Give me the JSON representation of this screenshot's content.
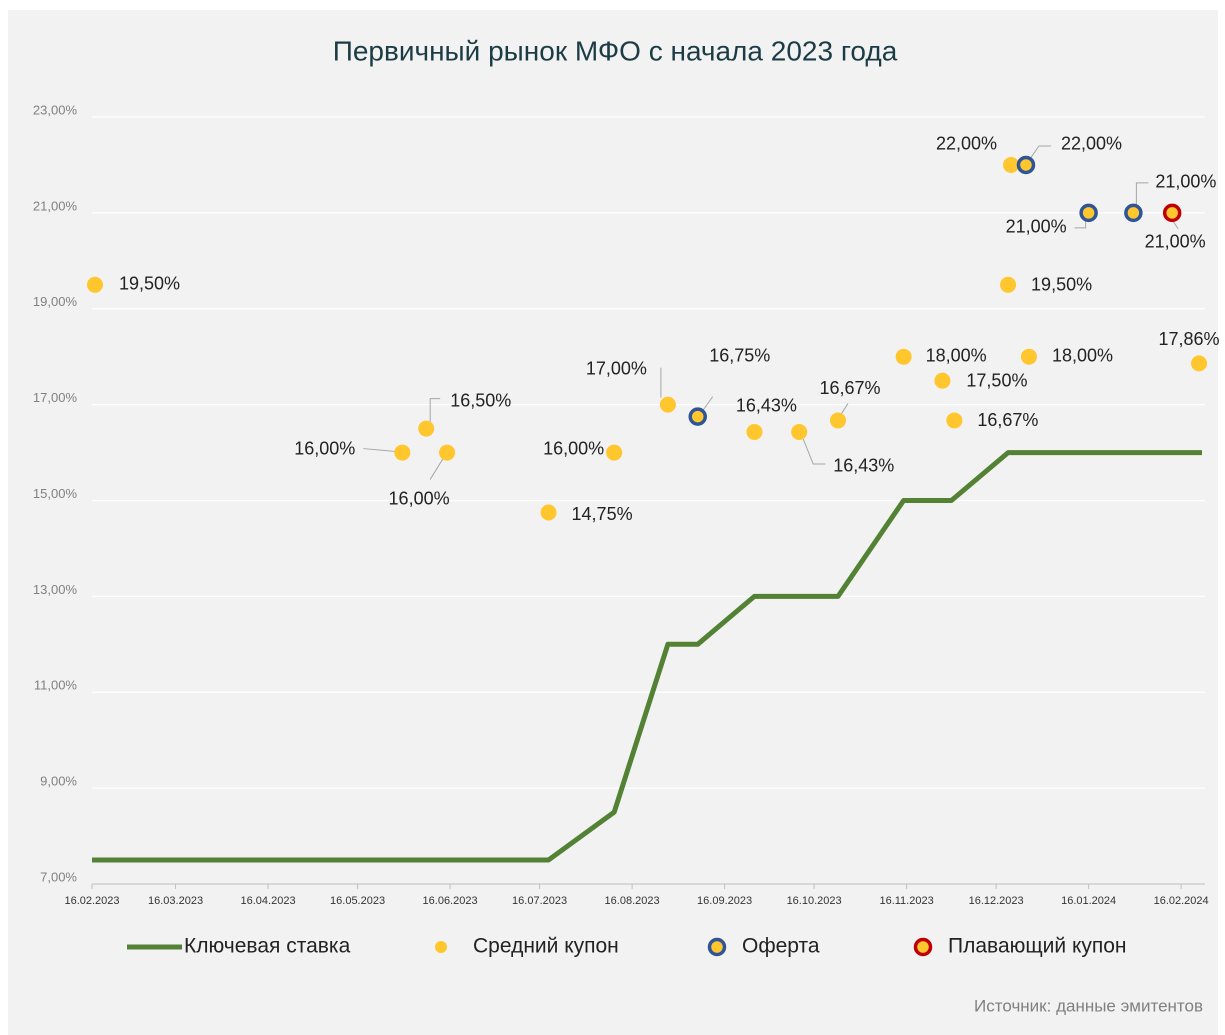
{
  "chart_data": {
    "type": "line",
    "title": "Первичный рынок МФО с начала 2023 года",
    "source": "Источник: данные эмитентов",
    "xlim": [
      "16.02.2023",
      "24.02.2024"
    ],
    "xticks": [
      "16.02.2023",
      "16.03.2023",
      "16.04.2023",
      "16.05.2023",
      "16.06.2023",
      "16.07.2023",
      "16.08.2023",
      "16.09.2023",
      "16.10.2023",
      "16.11.2023",
      "16.12.2023",
      "16.01.2024",
      "16.02.2024"
    ],
    "ylim": [
      7,
      23
    ],
    "yticks": [
      {
        "value": 7,
        "label": "7,00%"
      },
      {
        "value": 9,
        "label": "9,00%"
      },
      {
        "value": 11,
        "label": "11,00%"
      },
      {
        "value": 13,
        "label": "13,00%"
      },
      {
        "value": 15,
        "label": "15,00%"
      },
      {
        "value": 17,
        "label": "17,00%"
      },
      {
        "value": 19,
        "label": "19,00%"
      },
      {
        "value": 21,
        "label": "21,00%"
      },
      {
        "value": 23,
        "label": "23,00%"
      }
    ],
    "grid": true,
    "series": [
      {
        "name": "Ключевая ставка",
        "type": "line",
        "color": "#548235",
        "x": [
          "16.02.2023",
          "19.07.2023",
          "10.08.2023",
          "28.08.2023",
          "07.09.2023",
          "26.09.2023",
          "24.10.2023",
          "15.11.2023",
          "01.12.2023",
          "20.12.2023",
          "23.02.2024"
        ],
        "values": [
          7.5,
          7.5,
          8.5,
          12,
          12,
          13,
          13,
          15,
          15,
          16,
          16
        ]
      },
      {
        "name": "Средний купон",
        "type": "scatter",
        "color": "#ffc62e",
        "x": [
          "17.02.2023",
          "31.05.2023",
          "08.06.2023",
          "15.06.2023",
          "19.07.2023",
          "10.08.2023",
          "28.08.2023",
          "26.09.2023",
          "11.10.2023",
          "24.10.2023",
          "15.11.2023",
          "28.11.2023",
          "02.12.2023",
          "21.12.2023",
          "20.12.2023",
          "27.12.2023",
          "22.02.2024"
        ],
        "values": [
          19.5,
          16,
          16.5,
          16,
          14.75,
          16,
          17,
          16.43,
          16.43,
          16.67,
          18,
          17.5,
          16.67,
          22,
          19.5,
          18,
          17.86
        ],
        "value_labels": [
          "19,50%",
          "16,00%",
          "16,50%",
          "16,00%",
          "14,75%",
          "16,00%",
          "17,00%",
          "16,43%",
          "16,43%",
          "16,67%",
          "18,00%",
          "17,50%",
          "16,67%",
          "22,00%",
          "19,50%",
          "18,00%",
          "17,86%"
        ]
      },
      {
        "name": "Оферта",
        "type": "scatter",
        "color": "#ffc62e",
        "edge_color": "#2f5597",
        "x": [
          "07.09.2023",
          "26.12.2023",
          "16.01.2024",
          "31.01.2024"
        ],
        "values": [
          16.75,
          22,
          21,
          21
        ],
        "value_labels": [
          "16,75%",
          "22,00%",
          "21,00%",
          "21,00%"
        ]
      },
      {
        "name": "Плавающий купон",
        "type": "scatter",
        "color": "#ffc62e",
        "edge_color": "#c00000",
        "x": [
          "13.02.2024"
        ],
        "values": [
          21
        ],
        "value_labels": [
          "21,00%"
        ]
      }
    ]
  }
}
